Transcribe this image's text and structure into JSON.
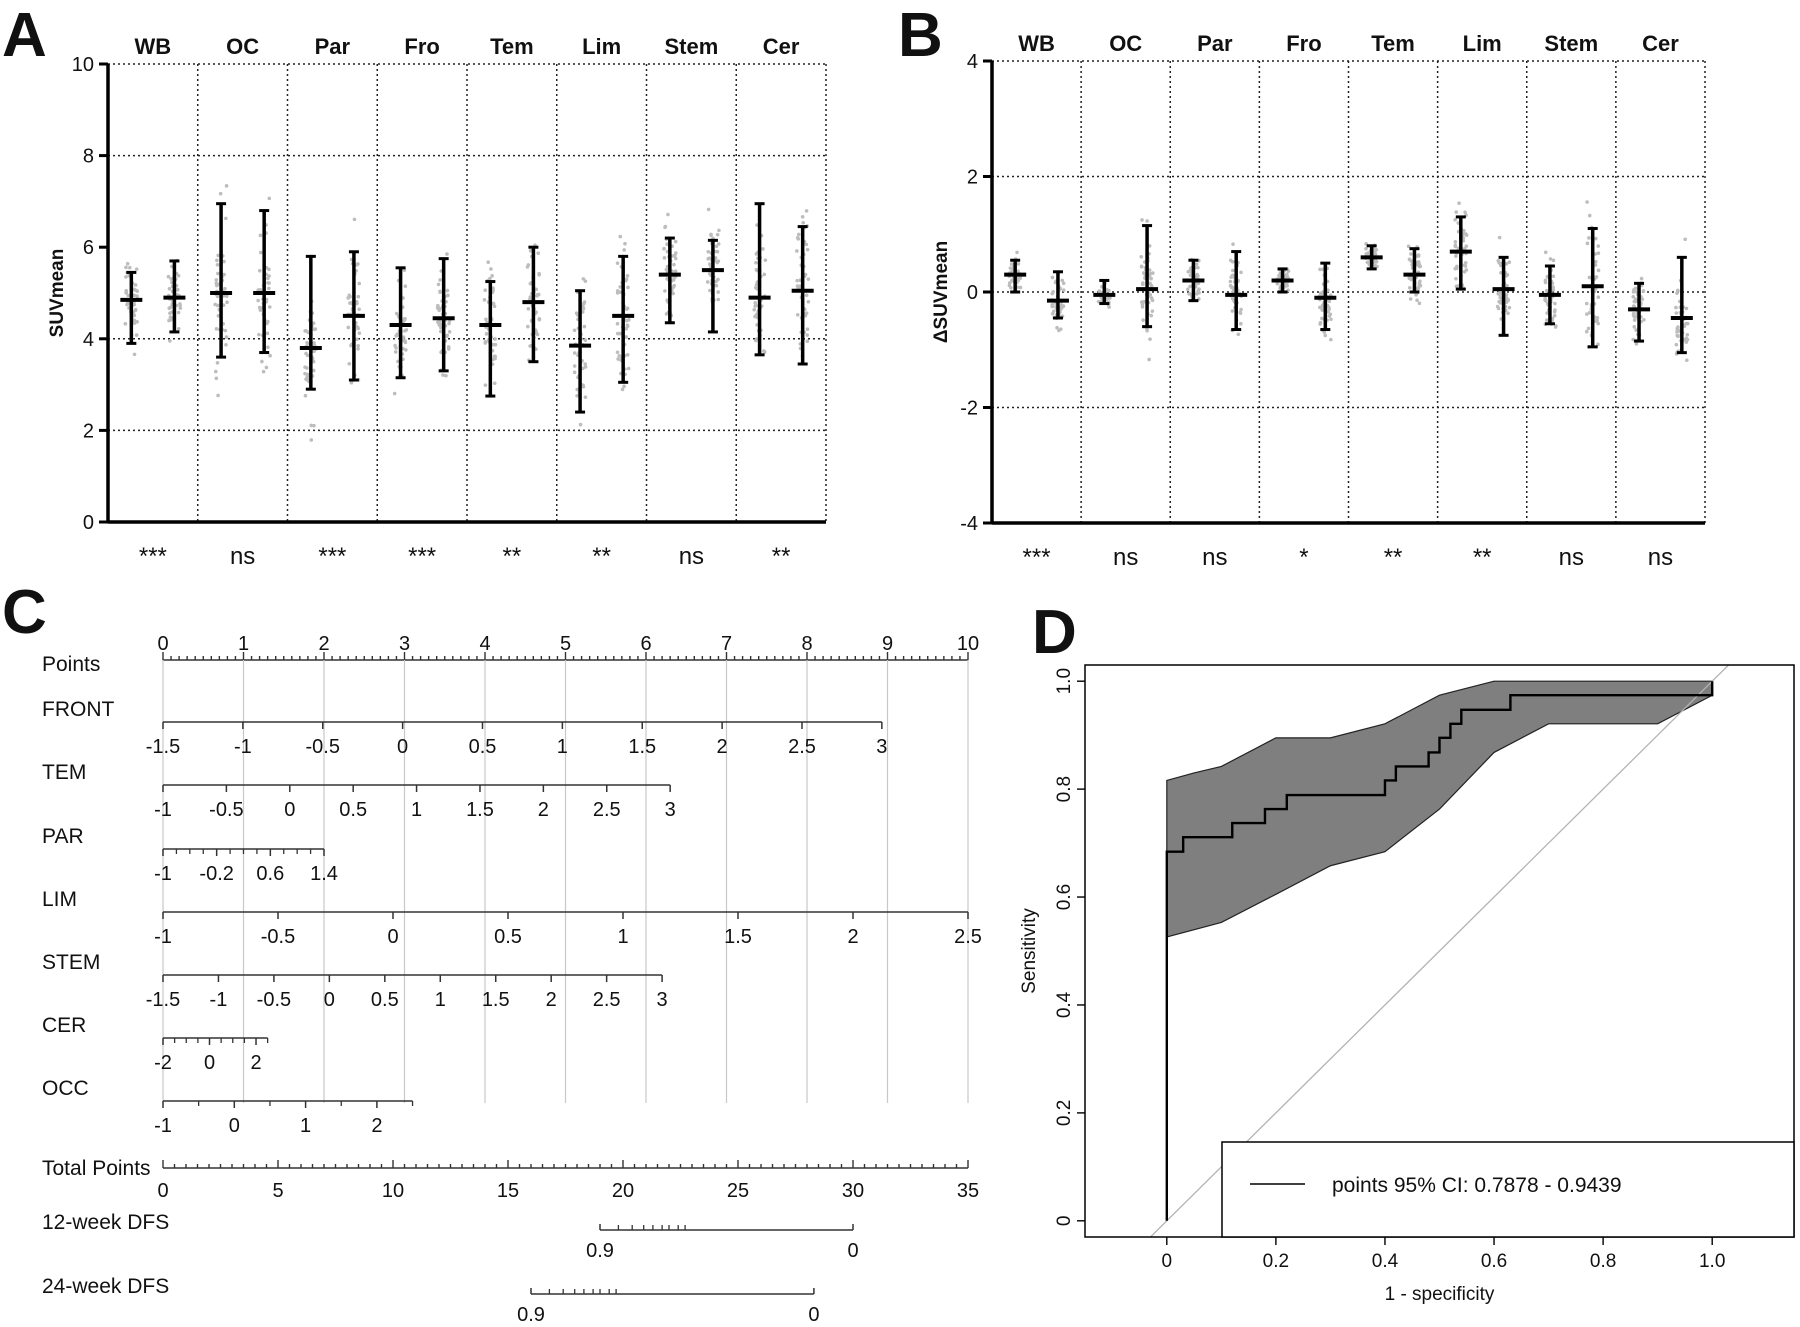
{
  "chart_data": [
    {
      "panel": "A",
      "type": "scatter",
      "ylabel": "SUVmean",
      "ylim": [
        0,
        10
      ],
      "yticks": [
        0,
        2,
        4,
        6,
        8,
        10
      ],
      "gridlines_y": [
        2,
        4,
        8,
        10
      ],
      "categories": [
        "WB",
        "OC",
        "Par",
        "Fro",
        "Tem",
        "Lim",
        "Stem",
        "Cer"
      ],
      "significance": [
        "***",
        "ns",
        "***",
        "***",
        "**",
        "**",
        "ns",
        "**"
      ],
      "groups": [
        {
          "region": "WB",
          "mean": [
            4.85,
            4.9
          ],
          "sd_low": [
            3.9,
            4.15
          ],
          "sd_high": [
            5.45,
            5.7
          ]
        },
        {
          "region": "OC",
          "mean": [
            5.0,
            5.0
          ],
          "sd_low": [
            3.6,
            3.7
          ],
          "sd_high": [
            6.95,
            6.8
          ]
        },
        {
          "region": "Par",
          "mean": [
            3.8,
            4.5
          ],
          "sd_low": [
            2.9,
            3.1
          ],
          "sd_high": [
            5.8,
            5.9
          ]
        },
        {
          "region": "Fro",
          "mean": [
            4.3,
            4.45
          ],
          "sd_low": [
            3.15,
            3.3
          ],
          "sd_high": [
            5.55,
            5.75
          ]
        },
        {
          "region": "Tem",
          "mean": [
            4.3,
            4.8
          ],
          "sd_low": [
            2.75,
            3.5
          ],
          "sd_high": [
            5.25,
            6.0
          ]
        },
        {
          "region": "Lim",
          "mean": [
            3.85,
            4.5
          ],
          "sd_low": [
            2.4,
            3.05
          ],
          "sd_high": [
            5.05,
            5.8
          ]
        },
        {
          "region": "Stem",
          "mean": [
            5.4,
            5.5
          ],
          "sd_low": [
            4.35,
            4.15
          ],
          "sd_high": [
            6.2,
            6.15
          ]
        },
        {
          "region": "Cer",
          "mean": [
            4.9,
            5.05
          ],
          "sd_low": [
            3.65,
            3.45
          ],
          "sd_high": [
            6.95,
            6.45
          ]
        }
      ]
    },
    {
      "panel": "B",
      "type": "scatter",
      "ylabel": "ΔSUVmean",
      "ylim": [
        -4,
        4
      ],
      "yticks": [
        -4,
        -2,
        0,
        2,
        4
      ],
      "gridlines_y": [
        -2,
        0,
        2,
        4
      ],
      "categories": [
        "WB",
        "OC",
        "Par",
        "Fro",
        "Tem",
        "Lim",
        "Stem",
        "Cer"
      ],
      "significance": [
        "***",
        "ns",
        "ns",
        "*",
        "**",
        "**",
        "ns",
        "ns"
      ],
      "groups": [
        {
          "region": "WB",
          "mean": [
            0.3,
            -0.15
          ],
          "sd_low": [
            0.0,
            -0.45
          ],
          "sd_high": [
            0.55,
            0.35
          ]
        },
        {
          "region": "OC",
          "mean": [
            -0.05,
            0.05
          ],
          "sd_low": [
            -0.2,
            -0.6
          ],
          "sd_high": [
            0.2,
            1.15
          ]
        },
        {
          "region": "Par",
          "mean": [
            0.2,
            -0.05
          ],
          "sd_low": [
            -0.15,
            -0.65
          ],
          "sd_high": [
            0.55,
            0.7
          ]
        },
        {
          "region": "Fro",
          "mean": [
            0.2,
            -0.1
          ],
          "sd_low": [
            0.0,
            -0.65
          ],
          "sd_high": [
            0.4,
            0.5
          ]
        },
        {
          "region": "Tem",
          "mean": [
            0.6,
            0.3
          ],
          "sd_low": [
            0.4,
            0.0
          ],
          "sd_high": [
            0.8,
            0.75
          ]
        },
        {
          "region": "Lim",
          "mean": [
            0.7,
            0.05
          ],
          "sd_low": [
            0.05,
            -0.75
          ],
          "sd_high": [
            1.3,
            0.6
          ]
        },
        {
          "region": "Stem",
          "mean": [
            -0.05,
            0.1
          ],
          "sd_low": [
            -0.55,
            -0.95
          ],
          "sd_high": [
            0.45,
            1.1
          ]
        },
        {
          "region": "Cer",
          "mean": [
            -0.3,
            -0.45
          ],
          "sd_low": [
            -0.85,
            -1.05
          ],
          "sd_high": [
            0.15,
            0.6
          ]
        }
      ]
    },
    {
      "panel": "C",
      "type": "nomogram",
      "points_scale": {
        "label": "Points",
        "min": 0,
        "max": 10,
        "major": [
          0,
          1,
          2,
          3,
          4,
          5,
          6,
          7,
          8,
          9,
          10
        ]
      },
      "variables": [
        {
          "label": "FRONT",
          "min": -1.5,
          "max": 3,
          "points_at_min": 0,
          "points_at_max": 8.93,
          "ticks": [
            "-1.5",
            "-1",
            "-0.5",
            "0",
            "0.5",
            "1",
            "1.5",
            "2",
            "2.5",
            "3"
          ],
          "tick_values": [
            -1.5,
            -1,
            -0.5,
            0,
            0.5,
            1,
            1.5,
            2,
            2.5,
            3
          ],
          "minor_ticks": []
        },
        {
          "label": "TEM",
          "min": -1,
          "max": 3,
          "points_at_min": 0,
          "points_at_max": 6.3,
          "ticks": [
            "-1",
            "-0.5",
            "0",
            "0.5",
            "1",
            "1.5",
            "2",
            "2.5",
            "3"
          ],
          "tick_values": [
            -1,
            -0.5,
            0,
            0.5,
            1,
            1.5,
            2,
            2.5,
            3
          ],
          "minor_ticks": []
        },
        {
          "label": "PAR",
          "min": -1,
          "max": 1.4,
          "points_at_min": 0,
          "points_at_max": 2.0,
          "ticks": [
            "-1",
            "-0.2",
            "0.6",
            "1.4"
          ],
          "tick_values": [
            -1,
            -0.2,
            0.6,
            1.4
          ],
          "minor_ticks": [
            -0.8,
            -0.6,
            -0.4,
            0,
            0.2,
            0.4,
            0.8,
            1.0,
            1.2
          ]
        },
        {
          "label": "LIM",
          "min": -1,
          "max": 2.5,
          "points_at_min": 0,
          "points_at_max": 10.0,
          "ticks": [
            "-1",
            "-0.5",
            "0",
            "0.5",
            "1",
            "1.5",
            "2",
            "2.5"
          ],
          "tick_values": [
            -1,
            -0.5,
            0,
            0.5,
            1,
            1.5,
            2,
            2.5
          ],
          "minor_ticks": []
        },
        {
          "label": "STEM",
          "min": -1.5,
          "max": 3,
          "points_at_min": 0,
          "points_at_max": 6.2,
          "ticks": [
            "-1.5",
            "-1",
            "-0.5",
            "0",
            "0.5",
            "1",
            "1.5",
            "2",
            "2.5",
            "3"
          ],
          "tick_values": [
            -1.5,
            -1,
            -0.5,
            0,
            0.5,
            1,
            1.5,
            2,
            2.5,
            3
          ],
          "minor_ticks": []
        },
        {
          "label": "CER",
          "min": -2,
          "max": 2.5,
          "points_at_min": 0,
          "points_at_max": 1.3,
          "ticks": [
            "-2",
            "0",
            "2"
          ],
          "tick_values": [
            -2,
            0,
            2
          ],
          "minor_ticks": [
            -1.5,
            -1,
            -0.5,
            0.5,
            1,
            1.5,
            2.5
          ]
        },
        {
          "label": "OCC",
          "min": -1,
          "max": 2.5,
          "points_at_min": 0,
          "points_at_max": 3.1,
          "ticks": [
            "-1",
            "0",
            "1",
            "2"
          ],
          "tick_values": [
            -1,
            0,
            1,
            2
          ],
          "minor_ticks": [
            -0.5,
            0.5,
            1.5,
            2.5
          ]
        }
      ],
      "total_points": {
        "label": "Total Points",
        "min": 0,
        "max": 35,
        "ticks": [
          "0",
          "5",
          "10",
          "15",
          "20",
          "25",
          "30",
          "35"
        ],
        "tick_values": [
          0,
          5,
          10,
          15,
          20,
          25,
          30,
          35
        ]
      },
      "dfs": [
        {
          "label": "12-week DFS",
          "total_at_left": 19,
          "total_at_right": 30,
          "left_label": "0.9",
          "right_label": "0",
          "minor_ticks_total": [
            19.8,
            20.4,
            20.9,
            21.3,
            21.7,
            22.0,
            22.4,
            22.7
          ]
        },
        {
          "label": "24-week DFS",
          "total_at_left": 16,
          "total_at_right": 28.3,
          "left_label": "0.9",
          "right_label": "0",
          "minor_ticks_total": [
            16.8,
            17.4,
            17.9,
            18.3,
            18.7,
            19.0,
            19.4,
            19.7
          ]
        }
      ]
    },
    {
      "panel": "D",
      "type": "line",
      "xlabel": "1 - specificity",
      "ylabel": "Sensitivity",
      "xlim": [
        -0.15,
        1.15
      ],
      "ylim": [
        -0.03,
        1.03
      ],
      "xticks": [
        "0",
        "0.2",
        "0.4",
        "0.6",
        "0.8",
        "1.0"
      ],
      "xtick_values": [
        0,
        0.2,
        0.4,
        0.6,
        0.8,
        1.0
      ],
      "yticks": [
        "0",
        "0.2",
        "0.4",
        "0.6",
        "0.8",
        "1.0"
      ],
      "ytick_values": [
        0,
        0.2,
        0.4,
        0.6,
        0.8,
        1.0
      ],
      "roc": [
        [
          0,
          0
        ],
        [
          0,
          0.684
        ],
        [
          0.03,
          0.684
        ],
        [
          0.03,
          0.711
        ],
        [
          0.12,
          0.711
        ],
        [
          0.12,
          0.737
        ],
        [
          0.18,
          0.737
        ],
        [
          0.18,
          0.763
        ],
        [
          0.22,
          0.763
        ],
        [
          0.22,
          0.789
        ],
        [
          0.4,
          0.789
        ],
        [
          0.4,
          0.816
        ],
        [
          0.42,
          0.816
        ],
        [
          0.42,
          0.842
        ],
        [
          0.48,
          0.842
        ],
        [
          0.48,
          0.868
        ],
        [
          0.5,
          0.868
        ],
        [
          0.5,
          0.895
        ],
        [
          0.52,
          0.895
        ],
        [
          0.52,
          0.921
        ],
        [
          0.54,
          0.921
        ],
        [
          0.54,
          0.947
        ],
        [
          0.63,
          0.947
        ],
        [
          0.63,
          0.974
        ],
        [
          1.0,
          0.974
        ],
        [
          1.0,
          1.0
        ]
      ],
      "ci_upper": [
        [
          0,
          0.816
        ],
        [
          0.05,
          0.83
        ],
        [
          0.1,
          0.842
        ],
        [
          0.2,
          0.895
        ],
        [
          0.3,
          0.895
        ],
        [
          0.4,
          0.921
        ],
        [
          0.5,
          0.974
        ],
        [
          0.6,
          1.0
        ],
        [
          1.0,
          1.0
        ]
      ],
      "ci_lower": [
        [
          0,
          0.526
        ],
        [
          0.1,
          0.553
        ],
        [
          0.2,
          0.605
        ],
        [
          0.3,
          0.658
        ],
        [
          0.4,
          0.684
        ],
        [
          0.5,
          0.763
        ],
        [
          0.6,
          0.868
        ],
        [
          0.7,
          0.921
        ],
        [
          0.9,
          0.921
        ],
        [
          1.0,
          0.974
        ]
      ],
      "diagonal": [
        [
          -0.05,
          -0.05
        ],
        [
          1.03,
          1.03
        ]
      ],
      "legend": "points 95% CI: 0.7878 - 0.9439",
      "legend_position": "bottom-right",
      "colors": {
        "ci_fill": "#7f7f7f",
        "line": "#000000",
        "diagonal": "#b3b3b3"
      }
    }
  ],
  "panels": {
    "a": "A",
    "b": "B",
    "c": "C",
    "d": "D"
  }
}
